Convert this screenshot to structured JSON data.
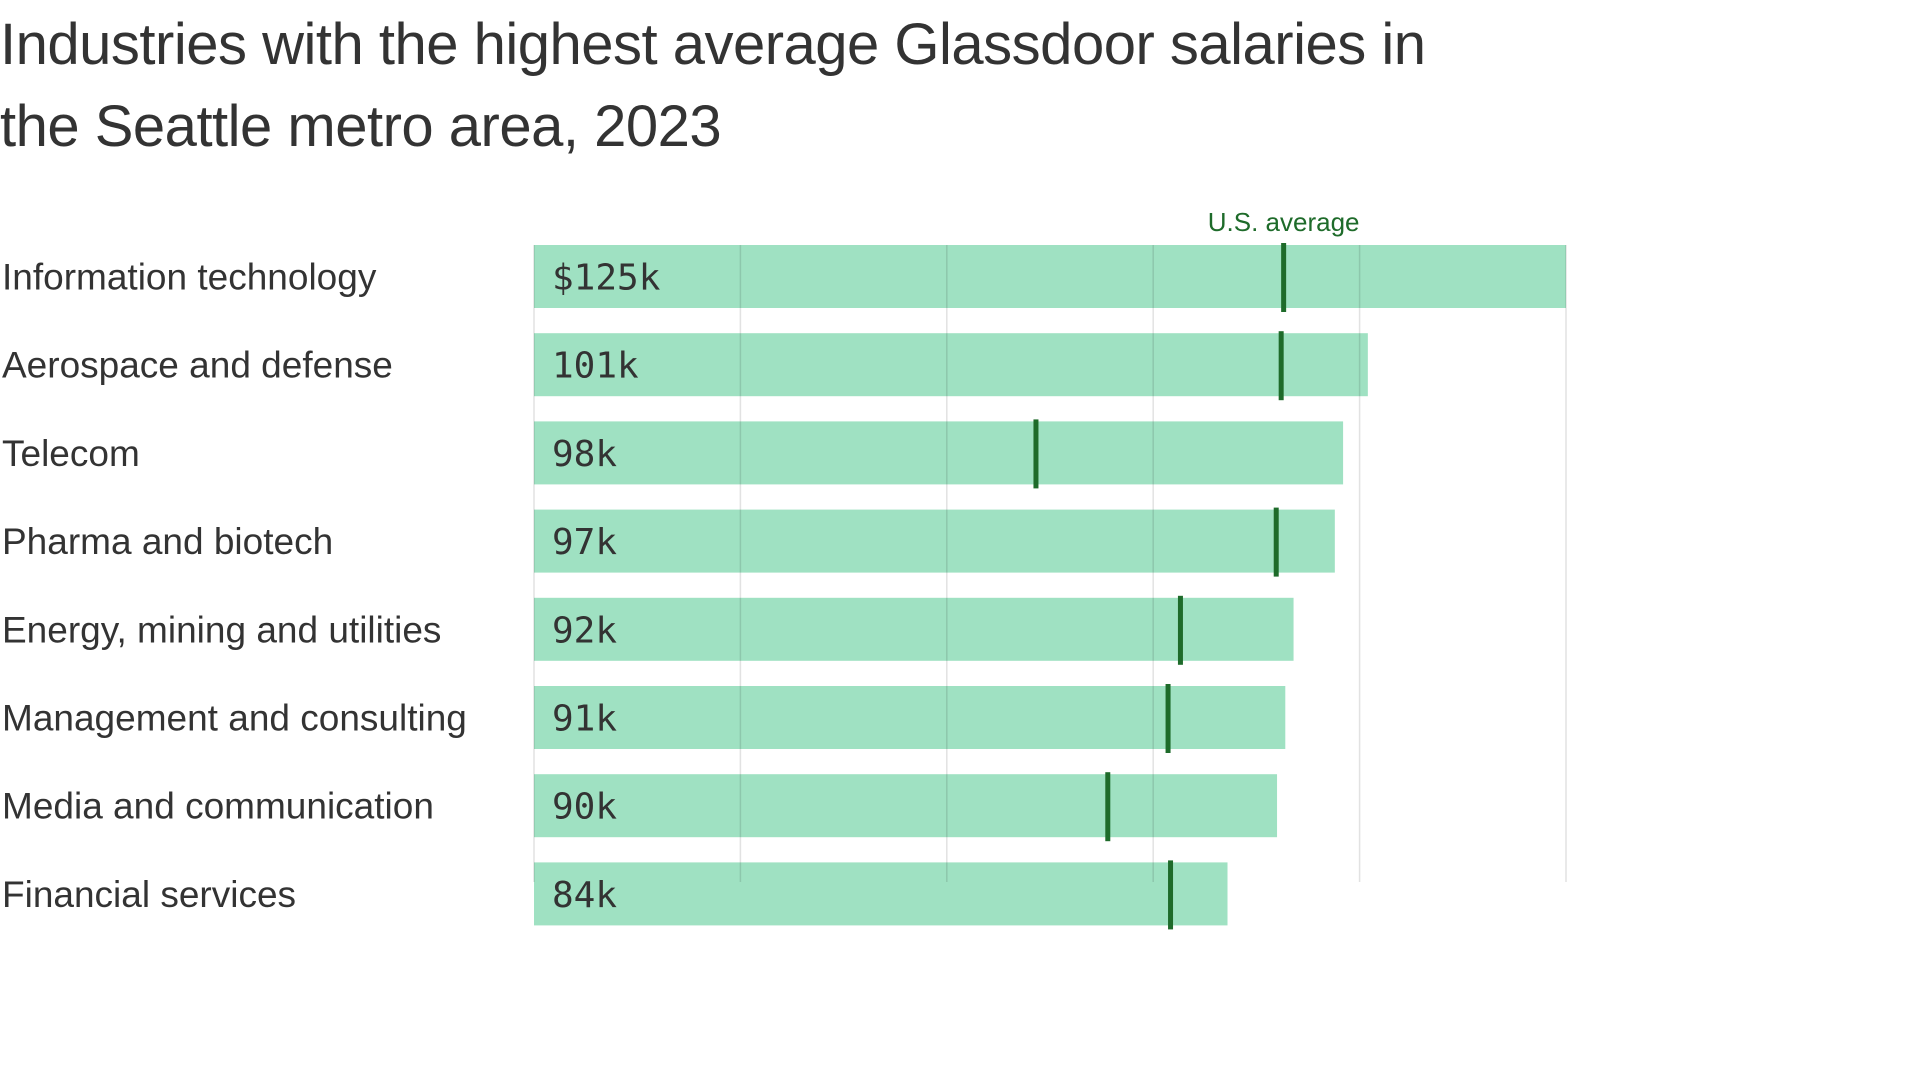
{
  "chart_data": {
    "type": "bar",
    "orientation": "horizontal",
    "title": "Industries with the highest average Glassdoor salaries in the Seattle metro area, 2023",
    "categories": [
      "Information technology",
      "Aerospace and defense",
      "Telecom",
      "Pharma and biotech",
      "Energy, mining and utilities",
      "Management and consulting",
      "Media and communication",
      "Financial services"
    ],
    "series": [
      {
        "values": [
          125,
          101,
          98,
          97,
          92,
          91,
          90,
          84
        ],
        "labels": [
          "$125k",
          "101k",
          "98k",
          "97k",
          "92k",
          "91k",
          "90k",
          "84k"
        ]
      },
      {
        "name": "U.S. average",
        "values": [
          90.8,
          90.5,
          60.8,
          89.9,
          78.3,
          76.8,
          69.5,
          77.1
        ]
      }
    ],
    "xlim": [
      0,
      125
    ],
    "grid": true,
    "colors": {
      "bar": "#9adfbf",
      "average_marker": "#1e6b2a",
      "grid": "#e2e2e2"
    }
  }
}
